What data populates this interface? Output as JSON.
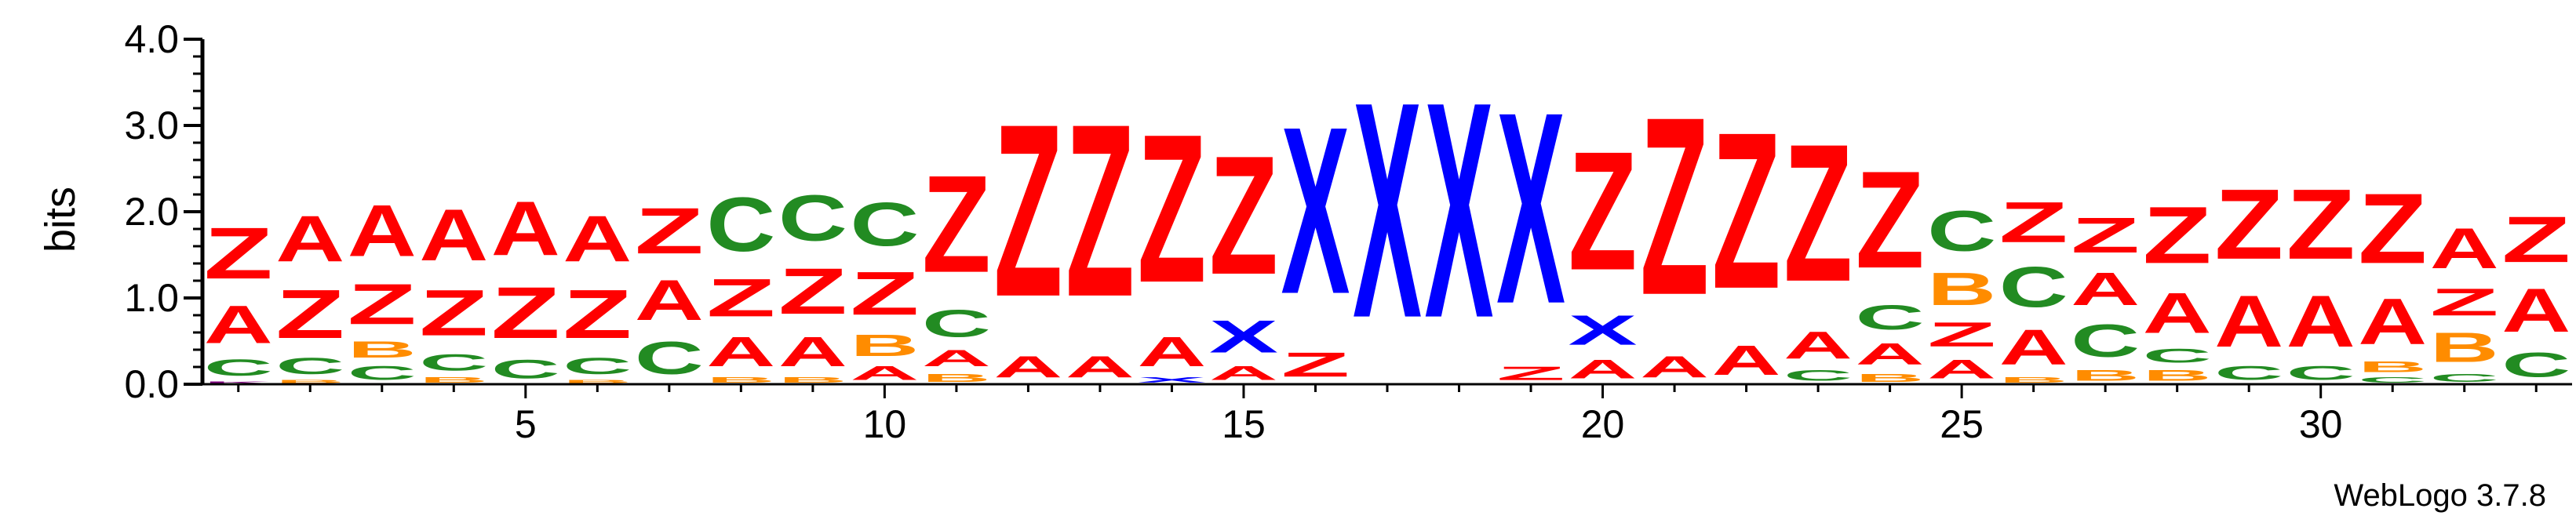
{
  "chart_data": {
    "type": "sequence-logo",
    "ylabel": "bits",
    "ylim": [
      0,
      4.0
    ],
    "y_ticks": [
      0.0,
      1.0,
      2.0,
      3.0,
      4.0
    ],
    "y_tick_labels": [
      "0.0",
      "1.0",
      "2.0",
      "3.0",
      "4.0"
    ],
    "x_ticks": [
      5,
      10,
      15,
      20,
      25,
      30
    ],
    "x_tick_labels": [
      "5",
      "10",
      "15",
      "20",
      "25",
      "30"
    ],
    "credit": "WebLogo 3.7.8",
    "colors": {
      "A": "#ff0000",
      "Z": "#ff0000",
      "B": "#ff8c00",
      "C": "#228b22",
      "X": "#0000ff",
      "K": "#800080"
    },
    "columns": [
      {
        "pos": 1,
        "stack": [
          {
            "s": "K",
            "v": 0.04
          },
          {
            "s": "C",
            "v": 0.3
          },
          {
            "s": "A",
            "v": 0.7
          },
          {
            "s": "Z",
            "v": 0.95
          }
        ]
      },
      {
        "pos": 2,
        "stack": [
          {
            "s": "B",
            "v": 0.06
          },
          {
            "s": "C",
            "v": 0.3
          },
          {
            "s": "Z",
            "v": 0.9
          },
          {
            "s": "A",
            "v": 0.85
          }
        ]
      },
      {
        "pos": 3,
        "stack": [
          {
            "s": "C",
            "v": 0.25
          },
          {
            "s": "B",
            "v": 0.3
          },
          {
            "s": "Z",
            "v": 0.75
          },
          {
            "s": "A",
            "v": 0.95
          }
        ]
      },
      {
        "pos": 4,
        "stack": [
          {
            "s": "B",
            "v": 0.1
          },
          {
            "s": "C",
            "v": 0.3
          },
          {
            "s": "Z",
            "v": 0.85
          },
          {
            "s": "A",
            "v": 0.95
          }
        ]
      },
      {
        "pos": 5,
        "stack": [
          {
            "s": "C",
            "v": 0.35
          },
          {
            "s": "Z",
            "v": 0.95
          },
          {
            "s": "A",
            "v": 1.0
          }
        ]
      },
      {
        "pos": 6,
        "stack": [
          {
            "s": "B",
            "v": 0.06
          },
          {
            "s": "C",
            "v": 0.3
          },
          {
            "s": "Z",
            "v": 0.9
          },
          {
            "s": "A",
            "v": 0.85
          }
        ]
      },
      {
        "pos": 7,
        "stack": [
          {
            "s": "C",
            "v": 0.6
          },
          {
            "s": "A",
            "v": 0.75
          },
          {
            "s": "Z",
            "v": 0.85
          }
        ]
      },
      {
        "pos": 8,
        "stack": [
          {
            "s": "B",
            "v": 0.1
          },
          {
            "s": "A",
            "v": 0.55
          },
          {
            "s": "Z",
            "v": 0.7
          },
          {
            "s": "C",
            "v": 1.0
          }
        ]
      },
      {
        "pos": 9,
        "stack": [
          {
            "s": "B",
            "v": 0.1
          },
          {
            "s": "A",
            "v": 0.55
          },
          {
            "s": "Z",
            "v": 0.85
          },
          {
            "s": "C",
            "v": 0.85
          }
        ]
      },
      {
        "pos": 10,
        "stack": [
          {
            "s": "A",
            "v": 0.25
          },
          {
            "s": "B",
            "v": 0.4
          },
          {
            "s": "Z",
            "v": 0.8
          },
          {
            "s": "C",
            "v": 0.8
          }
        ]
      },
      {
        "pos": 11,
        "stack": [
          {
            "s": "B",
            "v": 0.15
          },
          {
            "s": "A",
            "v": 0.3
          },
          {
            "s": "C",
            "v": 0.5
          },
          {
            "s": "Z",
            "v": 1.8
          }
        ]
      },
      {
        "pos": 12,
        "stack": [
          {
            "s": "A",
            "v": 0.4
          },
          {
            "s": "Z",
            "v": 3.2
          }
        ]
      },
      {
        "pos": 13,
        "stack": [
          {
            "s": "A",
            "v": 0.4
          },
          {
            "s": "Z",
            "v": 3.2
          }
        ]
      },
      {
        "pos": 14,
        "stack": [
          {
            "s": "X",
            "v": 0.1
          },
          {
            "s": "A",
            "v": 0.55
          },
          {
            "s": "Z",
            "v": 2.75
          }
        ]
      },
      {
        "pos": 15,
        "stack": [
          {
            "s": "A",
            "v": 0.25
          },
          {
            "s": "X",
            "v": 0.6
          },
          {
            "s": "Z",
            "v": 2.2
          }
        ]
      },
      {
        "pos": 16,
        "stack": [
          {
            "s": "Z",
            "v": 0.45
          },
          {
            "s": "X",
            "v": 3.1
          }
        ]
      },
      {
        "pos": 17,
        "stack": [
          {
            "s": "X",
            "v": 4.0
          }
        ]
      },
      {
        "pos": 18,
        "stack": [
          {
            "s": "X",
            "v": 4.0
          }
        ]
      },
      {
        "pos": 19,
        "stack": [
          {
            "s": "Z",
            "v": 0.25
          },
          {
            "s": "X",
            "v": 3.55
          }
        ]
      },
      {
        "pos": 20,
        "stack": [
          {
            "s": "A",
            "v": 0.35
          },
          {
            "s": "X",
            "v": 0.55
          },
          {
            "s": "Z",
            "v": 2.2
          }
        ]
      },
      {
        "pos": 21,
        "stack": [
          {
            "s": "A",
            "v": 0.4
          },
          {
            "s": "Z",
            "v": 3.3
          }
        ]
      },
      {
        "pos": 22,
        "stack": [
          {
            "s": "A",
            "v": 0.55
          },
          {
            "s": "Z",
            "v": 2.9
          }
        ]
      },
      {
        "pos": 23,
        "stack": [
          {
            "s": "C",
            "v": 0.2
          },
          {
            "s": "A",
            "v": 0.5
          },
          {
            "s": "Z",
            "v": 2.55
          }
        ]
      },
      {
        "pos": 24,
        "stack": [
          {
            "s": "B",
            "v": 0.15
          },
          {
            "s": "A",
            "v": 0.4
          },
          {
            "s": "C",
            "v": 0.45
          },
          {
            "s": "Z",
            "v": 1.8
          }
        ]
      },
      {
        "pos": 25,
        "stack": [
          {
            "s": "A",
            "v": 0.35
          },
          {
            "s": "Z",
            "v": 0.45
          },
          {
            "s": "B",
            "v": 0.6
          },
          {
            "s": "C",
            "v": 0.75
          }
        ]
      },
      {
        "pos": 26,
        "stack": [
          {
            "s": "B",
            "v": 0.1
          },
          {
            "s": "A",
            "v": 0.65
          },
          {
            "s": "C",
            "v": 0.75
          },
          {
            "s": "Z",
            "v": 0.75
          }
        ]
      },
      {
        "pos": 27,
        "stack": [
          {
            "s": "B",
            "v": 0.2
          },
          {
            "s": "C",
            "v": 0.6
          },
          {
            "s": "A",
            "v": 0.6
          },
          {
            "s": "Z",
            "v": 0.65
          }
        ]
      },
      {
        "pos": 28,
        "stack": [
          {
            "s": "B",
            "v": 0.2
          },
          {
            "s": "C",
            "v": 0.25
          },
          {
            "s": "A",
            "v": 0.75
          },
          {
            "s": "Z",
            "v": 1.05
          }
        ]
      },
      {
        "pos": 29,
        "stack": [
          {
            "s": "C",
            "v": 0.25
          },
          {
            "s": "A",
            "v": 0.95
          },
          {
            "s": "Z",
            "v": 1.3
          }
        ]
      },
      {
        "pos": 30,
        "stack": [
          {
            "s": "C",
            "v": 0.25
          },
          {
            "s": "A",
            "v": 0.95
          },
          {
            "s": "Z",
            "v": 1.3
          }
        ]
      },
      {
        "pos": 31,
        "stack": [
          {
            "s": "C",
            "v": 0.1
          },
          {
            "s": "B",
            "v": 0.2
          },
          {
            "s": "A",
            "v": 0.85
          },
          {
            "s": "Z",
            "v": 1.3
          }
        ]
      },
      {
        "pos": 32,
        "stack": [
          {
            "s": "C",
            "v": 0.15
          },
          {
            "s": "B",
            "v": 0.55
          },
          {
            "s": "Z",
            "v": 0.5
          },
          {
            "s": "A",
            "v": 0.75
          }
        ]
      },
      {
        "pos": 33,
        "stack": [
          {
            "s": "C",
            "v": 0.45
          },
          {
            "s": "A",
            "v": 0.8
          },
          {
            "s": "Z",
            "v": 0.85
          }
        ]
      }
    ]
  }
}
